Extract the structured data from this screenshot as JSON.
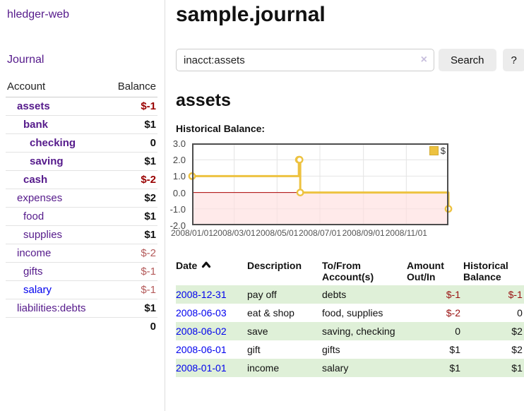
{
  "sidebar": {
    "app_title": "hledger-web",
    "journal_label": "Journal",
    "accounts_table": {
      "headers": [
        "Account",
        "Balance"
      ],
      "rows": [
        {
          "name": "assets",
          "indent": 1,
          "bold": true,
          "balance": "$-1",
          "negative": true
        },
        {
          "name": "bank",
          "indent": 2,
          "bold": true,
          "balance": "$1"
        },
        {
          "name": "checking",
          "indent": 3,
          "bold": true,
          "balance": "0"
        },
        {
          "name": "saving",
          "indent": 3,
          "bold": true,
          "balance": "$1"
        },
        {
          "name": "cash",
          "indent": 2,
          "bold": true,
          "balance": "$-2",
          "negative": true
        },
        {
          "name": "expenses",
          "indent": 1,
          "balance": "$2"
        },
        {
          "name": "food",
          "indent": 2,
          "balance": "$1"
        },
        {
          "name": "supplies",
          "indent": 2,
          "balance": "$1"
        },
        {
          "name": "income",
          "indent": 1,
          "balance": "$-2",
          "negative": true
        },
        {
          "name": "gifts",
          "indent": 2,
          "balance": "$-1",
          "negative": true
        },
        {
          "name": "salary",
          "indent": 2,
          "balance": "$-1",
          "negative": true,
          "blue": true
        },
        {
          "name": "liabilities:debts",
          "indent": 1,
          "balance": "$1",
          "last": true
        }
      ],
      "total": "0"
    }
  },
  "main": {
    "title": "sample.journal",
    "search": {
      "value": "inacct:assets",
      "clear_icon": "×",
      "button_label": "Search",
      "help_label": "?"
    },
    "account_heading": "assets",
    "chart_label": "Historical Balance:",
    "register_table": {
      "headers": {
        "date": "Date",
        "description": "Description",
        "tofrom": "To/From\nAccount(s)",
        "amount": "Amount\nOut/In",
        "historical": "Historical\nBalance"
      },
      "rows": [
        {
          "date": "2008-12-31",
          "description": "pay off",
          "accounts": "debts",
          "amount": "$-1",
          "amount_negative": true,
          "balance": "$-1",
          "balance_negative": true
        },
        {
          "date": "2008-06-03",
          "description": "eat & shop",
          "accounts": "food, supplies",
          "amount": "$-2",
          "amount_negative": true,
          "balance": "0"
        },
        {
          "date": "2008-06-02",
          "description": "save",
          "accounts": "saving, checking",
          "amount": "0",
          "balance": "$2"
        },
        {
          "date": "2008-06-01",
          "description": "gift",
          "accounts": "gifts",
          "amount": "$1",
          "balance": "$2"
        },
        {
          "date": "2008-01-01",
          "description": "income",
          "accounts": "salary",
          "amount": "$1",
          "balance": "$1"
        }
      ]
    }
  },
  "chart_data": {
    "type": "line",
    "title": "Historical Balance",
    "step": true,
    "series": [
      {
        "name": "$",
        "color": "#edc240",
        "points": [
          [
            "2008-01-01",
            1
          ],
          [
            "2008-06-01",
            2
          ],
          [
            "2008-06-02",
            2
          ],
          [
            "2008-06-03",
            0
          ],
          [
            "2008-12-31",
            -1
          ]
        ]
      }
    ],
    "x_range": [
      "2008-01-01",
      "2008-12-31"
    ],
    "ylim": [
      -2,
      3
    ],
    "x_ticks": [
      "2008/01/01",
      "2008/03/01",
      "2008/05/01",
      "2008/07/01",
      "2008/09/01",
      "2008/11/01"
    ],
    "y_ticks": [
      "3.0",
      "2.0",
      "1.0",
      "0.0",
      "-1.0",
      "-2.0"
    ],
    "y_gridlines": [
      2,
      1,
      -1
    ],
    "grid": true,
    "legend": {
      "label": "$",
      "position": "top-right"
    },
    "negative_region_color": "#ffdddd",
    "zero_line_color": "#aa0000"
  },
  "colors": {
    "link_purple": "#551a8b",
    "link_blue": "#0000ee",
    "negative_bold": "#990000",
    "negative_soft": "#b45a5a",
    "negative_table": "#991111",
    "row_stripe": "#dff0d8",
    "chart_line": "#edc240",
    "chart_border": "#4d4d4d",
    "chart_negative_fill": "#ffdddd",
    "chart_zero_line": "#aa0000"
  }
}
